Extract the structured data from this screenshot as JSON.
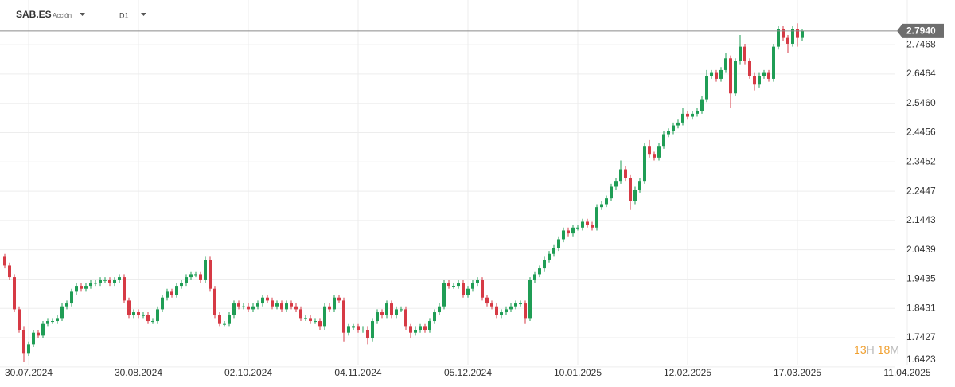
{
  "header": {
    "symbol": "SAB.ES",
    "kind": "Acción",
    "timeframe": "D1"
  },
  "countdown": {
    "hours": "13",
    "hours_unit": "H",
    "minutes": "18",
    "minutes_unit": "M"
  },
  "chart_data": {
    "type": "candlestick",
    "up_color": "#1f9d55",
    "down_color": "#d63a45",
    "grid": true,
    "last_price": {
      "value": 2.794,
      "label": "2.7940"
    },
    "xlim": [
      -1,
      199
    ],
    "xticks": [
      {
        "value": 5,
        "label": "30.07.2024"
      },
      {
        "value": 28,
        "label": "30.08.2024"
      },
      {
        "value": 51,
        "label": "02.10.2024"
      },
      {
        "value": 74,
        "label": "04.11.2024"
      },
      {
        "value": 97,
        "label": "05.12.2024"
      },
      {
        "value": 120,
        "label": "10.01.2025"
      },
      {
        "value": 143,
        "label": "12.02.2025"
      },
      {
        "value": 166,
        "label": "17.03.2025"
      },
      {
        "value": 189,
        "label": "11.04.2025"
      }
    ],
    "ylim": [
      1.65,
      2.9
    ],
    "yticks": [
      2.7468,
      2.6464,
      {
        "value": 2.546,
        "label": "2.5460"
      },
      2.4456,
      2.3452,
      2.2447,
      2.1443,
      2.0439,
      1.9435,
      1.8431,
      1.7427,
      1.6423
    ],
    "open": [
      2.02,
      1.99,
      1.95,
      1.84,
      1.77,
      1.69,
      1.72,
      1.76,
      1.75,
      1.79,
      1.8,
      1.8,
      1.81,
      1.85,
      1.86,
      1.9,
      1.92,
      1.91,
      1.92,
      1.93,
      1.93,
      1.94,
      1.94,
      1.93,
      1.94,
      1.95,
      1.87,
      1.82,
      1.83,
      1.82,
      1.82,
      1.8,
      1.8,
      1.84,
      1.88,
      1.9,
      1.89,
      1.92,
      1.93,
      1.95,
      1.96,
      1.96,
      1.94,
      2.01,
      1.91,
      1.82,
      1.79,
      1.79,
      1.82,
      1.86,
      1.85,
      1.85,
      1.84,
      1.85,
      1.86,
      1.88,
      1.87,
      1.85,
      1.86,
      1.84,
      1.86,
      1.85,
      1.84,
      1.81,
      1.81,
      1.8,
      1.8,
      1.78,
      1.85,
      1.84,
      1.88,
      1.87,
      1.76,
      1.78,
      1.78,
      1.77,
      1.77,
      1.74,
      1.8,
      1.83,
      1.82,
      1.86,
      1.82,
      1.84,
      1.84,
      1.78,
      1.76,
      1.77,
      1.78,
      1.77,
      1.8,
      1.83,
      1.85,
      1.93,
      1.92,
      1.92,
      1.93,
      1.89,
      1.91,
      1.93,
      1.94,
      1.88,
      1.86,
      1.85,
      1.82,
      1.83,
      1.84,
      1.85,
      1.86,
      1.86,
      1.81,
      1.94,
      1.96,
      1.98,
      2.01,
      2.03,
      2.05,
      2.08,
      2.11,
      2.1,
      2.12,
      2.12,
      2.14,
      2.13,
      2.12,
      2.19,
      2.2,
      2.22,
      2.26,
      2.28,
      2.32,
      2.29,
      2.21,
      2.25,
      2.28,
      2.4,
      2.37,
      2.36,
      2.4,
      2.44,
      2.45,
      2.47,
      2.48,
      2.51,
      2.5,
      2.51,
      2.52,
      2.56,
      2.64,
      2.65,
      2.63,
      2.66,
      2.7,
      2.58,
      2.69,
      2.74,
      2.69,
      2.64,
      2.61,
      2.64,
      2.65,
      2.63,
      2.74,
      2.8,
      2.77,
      2.75,
      2.8,
      2.77
    ],
    "high": [
      2.03,
      2.0,
      1.96,
      1.85,
      1.78,
      1.73,
      1.77,
      1.77,
      1.8,
      1.81,
      1.81,
      1.82,
      1.86,
      1.87,
      1.91,
      1.93,
      1.93,
      1.93,
      1.94,
      1.94,
      1.95,
      1.95,
      1.95,
      1.95,
      1.96,
      1.96,
      1.88,
      1.84,
      1.84,
      1.83,
      1.83,
      1.81,
      1.85,
      1.89,
      1.91,
      1.91,
      1.93,
      1.94,
      1.96,
      1.97,
      1.97,
      1.97,
      2.02,
      2.02,
      1.92,
      1.83,
      1.8,
      1.83,
      1.87,
      1.87,
      1.86,
      1.86,
      1.86,
      1.87,
      1.89,
      1.89,
      1.88,
      1.87,
      1.87,
      1.87,
      1.87,
      1.86,
      1.85,
      1.82,
      1.82,
      1.81,
      1.81,
      1.86,
      1.86,
      1.89,
      1.89,
      1.88,
      1.79,
      1.79,
      1.79,
      1.78,
      1.78,
      1.81,
      1.84,
      1.84,
      1.87,
      1.87,
      1.85,
      1.85,
      1.85,
      1.79,
      1.78,
      1.79,
      1.79,
      1.81,
      1.84,
      1.86,
      1.94,
      1.94,
      1.93,
      1.94,
      1.94,
      1.92,
      1.94,
      1.95,
      1.95,
      1.89,
      1.87,
      1.86,
      1.84,
      1.85,
      1.86,
      1.87,
      1.87,
      1.87,
      1.95,
      1.97,
      1.99,
      2.02,
      2.04,
      2.06,
      2.09,
      2.12,
      2.12,
      2.13,
      2.13,
      2.15,
      2.15,
      2.14,
      2.2,
      2.21,
      2.23,
      2.27,
      2.29,
      2.35,
      2.33,
      2.3,
      2.26,
      2.29,
      2.41,
      2.42,
      2.38,
      2.41,
      2.45,
      2.46,
      2.48,
      2.49,
      2.53,
      2.52,
      2.52,
      2.53,
      2.57,
      2.66,
      2.66,
      2.66,
      2.67,
      2.72,
      2.71,
      2.7,
      2.78,
      2.75,
      2.7,
      2.65,
      2.65,
      2.66,
      2.66,
      2.75,
      2.81,
      2.81,
      2.78,
      2.81,
      2.82,
      2.8
    ],
    "low": [
      1.98,
      1.94,
      1.83,
      1.76,
      1.66,
      1.68,
      1.71,
      1.74,
      1.74,
      1.78,
      1.79,
      1.79,
      1.8,
      1.84,
      1.85,
      1.89,
      1.9,
      1.9,
      1.91,
      1.92,
      1.92,
      1.93,
      1.92,
      1.92,
      1.93,
      1.86,
      1.81,
      1.81,
      1.81,
      1.81,
      1.79,
      1.79,
      1.79,
      1.83,
      1.87,
      1.88,
      1.88,
      1.91,
      1.92,
      1.94,
      1.95,
      1.93,
      1.93,
      1.9,
      1.81,
      1.78,
      1.78,
      1.78,
      1.81,
      1.84,
      1.84,
      1.83,
      1.83,
      1.84,
      1.85,
      1.86,
      1.84,
      1.84,
      1.83,
      1.83,
      1.84,
      1.83,
      1.8,
      1.8,
      1.79,
      1.79,
      1.77,
      1.77,
      1.83,
      1.83,
      1.86,
      1.73,
      1.75,
      1.77,
      1.76,
      1.76,
      1.72,
      1.73,
      1.79,
      1.81,
      1.81,
      1.81,
      1.81,
      1.83,
      1.77,
      1.74,
      1.75,
      1.76,
      1.76,
      1.76,
      1.79,
      1.82,
      1.84,
      1.91,
      1.91,
      1.91,
      1.88,
      1.88,
      1.9,
      1.92,
      1.87,
      1.85,
      1.84,
      1.81,
      1.81,
      1.82,
      1.83,
      1.84,
      1.85,
      1.79,
      1.8,
      1.93,
      1.95,
      1.97,
      2.0,
      2.02,
      2.04,
      2.07,
      2.09,
      2.09,
      2.11,
      2.11,
      2.12,
      2.11,
      2.11,
      2.18,
      2.19,
      2.21,
      2.25,
      2.27,
      2.28,
      2.18,
      2.2,
      2.24,
      2.27,
      2.36,
      2.35,
      2.35,
      2.39,
      2.43,
      2.44,
      2.46,
      2.47,
      2.49,
      2.49,
      2.5,
      2.51,
      2.55,
      2.63,
      2.62,
      2.62,
      2.65,
      2.53,
      2.57,
      2.68,
      2.68,
      2.63,
      2.59,
      2.6,
      2.63,
      2.62,
      2.62,
      2.73,
      2.76,
      2.72,
      2.74,
      2.74,
      2.76
    ],
    "close": [
      1.99,
      1.95,
      1.84,
      1.77,
      1.69,
      1.72,
      1.76,
      1.75,
      1.79,
      1.8,
      1.8,
      1.81,
      1.85,
      1.86,
      1.9,
      1.92,
      1.91,
      1.92,
      1.93,
      1.93,
      1.94,
      1.94,
      1.93,
      1.94,
      1.95,
      1.87,
      1.82,
      1.83,
      1.82,
      1.82,
      1.8,
      1.8,
      1.84,
      1.88,
      1.9,
      1.89,
      1.92,
      1.93,
      1.95,
      1.96,
      1.96,
      1.94,
      2.01,
      1.91,
      1.82,
      1.79,
      1.79,
      1.82,
      1.86,
      1.85,
      1.85,
      1.84,
      1.85,
      1.86,
      1.88,
      1.87,
      1.85,
      1.86,
      1.84,
      1.86,
      1.85,
      1.84,
      1.81,
      1.81,
      1.8,
      1.8,
      1.78,
      1.85,
      1.84,
      1.88,
      1.87,
      1.76,
      1.78,
      1.78,
      1.77,
      1.77,
      1.74,
      1.8,
      1.83,
      1.82,
      1.86,
      1.82,
      1.84,
      1.84,
      1.78,
      1.76,
      1.77,
      1.78,
      1.77,
      1.8,
      1.83,
      1.85,
      1.93,
      1.92,
      1.92,
      1.93,
      1.89,
      1.91,
      1.93,
      1.94,
      1.88,
      1.86,
      1.85,
      1.82,
      1.83,
      1.84,
      1.85,
      1.86,
      1.86,
      1.81,
      1.94,
      1.96,
      1.98,
      2.01,
      2.03,
      2.05,
      2.08,
      2.11,
      2.1,
      2.12,
      2.12,
      2.14,
      2.13,
      2.12,
      2.19,
      2.2,
      2.22,
      2.26,
      2.28,
      2.32,
      2.29,
      2.21,
      2.25,
      2.28,
      2.4,
      2.37,
      2.36,
      2.4,
      2.44,
      2.45,
      2.47,
      2.48,
      2.51,
      2.5,
      2.51,
      2.52,
      2.56,
      2.64,
      2.65,
      2.63,
      2.66,
      2.7,
      2.58,
      2.69,
      2.74,
      2.69,
      2.64,
      2.61,
      2.64,
      2.65,
      2.63,
      2.74,
      2.8,
      2.77,
      2.75,
      2.8,
      2.77,
      2.794
    ]
  }
}
